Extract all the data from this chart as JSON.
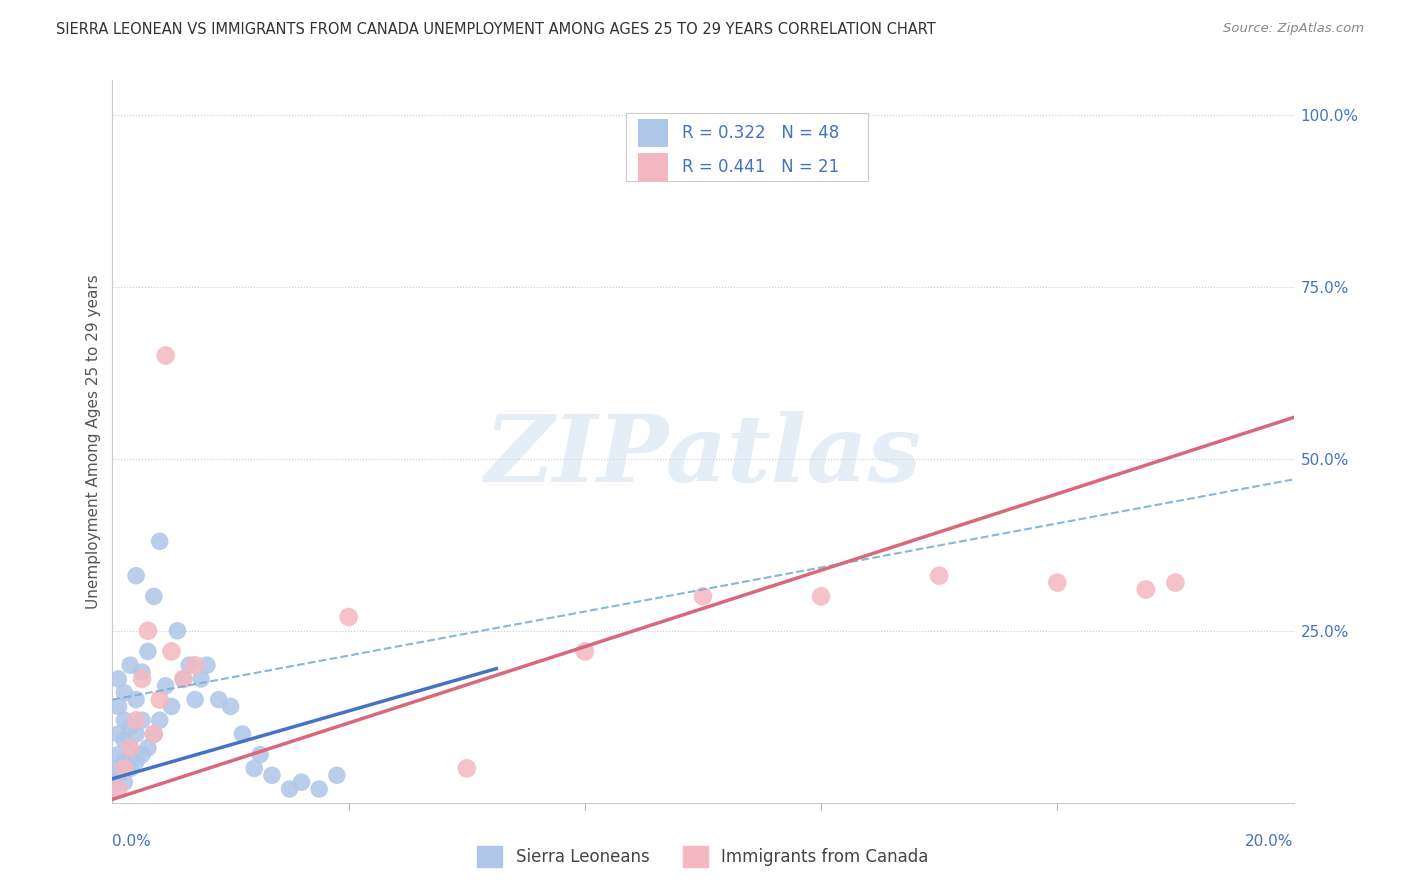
{
  "title": "SIERRA LEONEAN VS IMMIGRANTS FROM CANADA UNEMPLOYMENT AMONG AGES 25 TO 29 YEARS CORRELATION CHART",
  "source": "Source: ZipAtlas.com",
  "ylabel": "Unemployment Among Ages 25 to 29 years",
  "legend_label_blue": "Sierra Leoneans",
  "legend_label_pink": "Immigrants from Canada",
  "R_blue": "0.322",
  "N_blue": "48",
  "R_pink": "0.441",
  "N_pink": "21",
  "color_blue": "#aec6e8",
  "color_pink": "#f4b8c1",
  "color_line_blue": "#4472c4",
  "color_line_pink": "#d9687a",
  "color_dash": "#7bafd4",
  "color_text_blue": "#4472c4",
  "watermark": "ZIPatlas",
  "blue_x": [
    0.0,
    0.0,
    0.0,
    0.001,
    0.001,
    0.001,
    0.001,
    0.001,
    0.002,
    0.002,
    0.002,
    0.002,
    0.002,
    0.003,
    0.003,
    0.003,
    0.003,
    0.004,
    0.004,
    0.004,
    0.004,
    0.005,
    0.005,
    0.005,
    0.006,
    0.006,
    0.007,
    0.007,
    0.008,
    0.008,
    0.009,
    0.01,
    0.011,
    0.012,
    0.013,
    0.014,
    0.015,
    0.016,
    0.018,
    0.02,
    0.022,
    0.024,
    0.025,
    0.027,
    0.03,
    0.032,
    0.035,
    0.038
  ],
  "blue_y": [
    0.02,
    0.03,
    0.05,
    0.04,
    0.07,
    0.1,
    0.14,
    0.18,
    0.03,
    0.06,
    0.09,
    0.12,
    0.16,
    0.05,
    0.08,
    0.11,
    0.2,
    0.06,
    0.1,
    0.15,
    0.33,
    0.07,
    0.12,
    0.19,
    0.08,
    0.22,
    0.1,
    0.3,
    0.12,
    0.38,
    0.17,
    0.14,
    0.25,
    0.18,
    0.2,
    0.15,
    0.18,
    0.2,
    0.15,
    0.14,
    0.1,
    0.05,
    0.07,
    0.04,
    0.02,
    0.03,
    0.02,
    0.04
  ],
  "pink_x": [
    0.001,
    0.002,
    0.003,
    0.004,
    0.005,
    0.006,
    0.007,
    0.008,
    0.009,
    0.01,
    0.012,
    0.014,
    0.04,
    0.06,
    0.08,
    0.1,
    0.12,
    0.14,
    0.16,
    0.175,
    0.18
  ],
  "pink_y": [
    0.02,
    0.05,
    0.08,
    0.12,
    0.18,
    0.25,
    0.1,
    0.15,
    0.65,
    0.22,
    0.18,
    0.2,
    0.27,
    0.05,
    0.22,
    0.3,
    0.3,
    0.33,
    0.32,
    0.31,
    0.32
  ],
  "blue_line_x": [
    0.0,
    0.065
  ],
  "blue_line_y0": 0.035,
  "blue_line_y1": 0.195,
  "pink_line_x0": 0.0,
  "pink_line_y0": 0.005,
  "pink_line_x1": 0.2,
  "pink_line_y1": 0.56,
  "dash_line_x0": 0.0,
  "dash_line_y0": 0.15,
  "dash_line_x1": 0.2,
  "dash_line_y1": 0.47,
  "xlim": [
    0.0,
    0.2
  ],
  "ylim": [
    0.0,
    1.05
  ],
  "yticks": [
    0.25,
    0.5,
    0.75,
    1.0
  ],
  "ytick_labels": [
    "25.0%",
    "50.0%",
    "75.0%",
    "100.0%"
  ]
}
